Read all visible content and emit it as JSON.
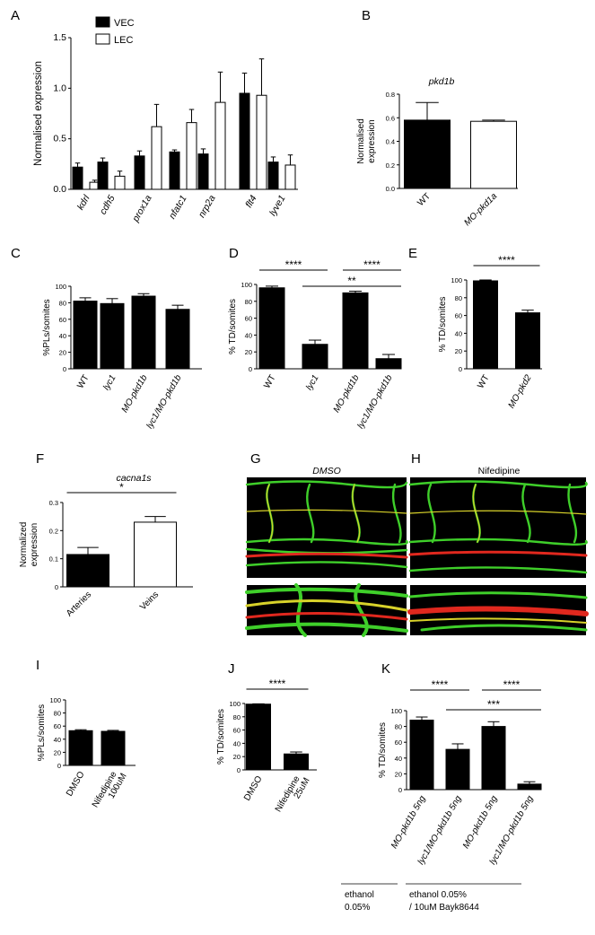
{
  "panels": {
    "A": "A",
    "B": "B",
    "C": "C",
    "D": "D",
    "E": "E",
    "F": "F",
    "G": "G",
    "H": "H",
    "I": "I",
    "J": "J",
    "K": "K"
  },
  "images": {
    "G_title": "DMSO",
    "H_title": "Nifedipine"
  },
  "conditions": {
    "left": [
      "ethanol",
      "0.05%"
    ],
    "right": [
      "ethanol 0.05%",
      "/ 10uM Bayk8644"
    ]
  },
  "colors": {
    "filled": "#000000",
    "open": "#ffffff",
    "green": "#3fcf2a",
    "red": "#e0281e",
    "yellow": "#d8d22a"
  },
  "chart_data": [
    {
      "id": "A",
      "type": "bar",
      "ylabel": "Normalised expression",
      "ylim": [
        0,
        1.5
      ],
      "yticks": [
        "0.0",
        "0.5",
        "1.0",
        "1.5"
      ],
      "legend": {
        "placement": "top-left",
        "entries": [
          "VEC",
          "LEC"
        ]
      },
      "categories": [
        "kdrl",
        "cdh5",
        "prox1a",
        "nfatc1",
        "nrp2a",
        "flt4",
        "lyve1"
      ],
      "series": [
        {
          "name": "VEC",
          "values": [
            0.22,
            0.27,
            0.33,
            0.37,
            0.35,
            0.95,
            0.27
          ],
          "errors": [
            0.04,
            0.04,
            0.05,
            0.02,
            0.05,
            0.2,
            0.05
          ]
        },
        {
          "name": "LEC",
          "values": [
            0.07,
            0.13,
            0.62,
            0.66,
            0.86,
            0.93,
            0.24
          ],
          "errors": [
            0.02,
            0.05,
            0.22,
            0.13,
            0.3,
            0.36,
            0.1
          ]
        }
      ]
    },
    {
      "id": "B",
      "type": "bar",
      "title": "pkd1b",
      "ylabel": [
        "Normalised",
        "expression"
      ],
      "ylim": [
        0,
        0.8
      ],
      "yticks": [
        "0.0",
        "0.2",
        "0.4",
        "0.6",
        "0.8"
      ],
      "categories": [
        "WT",
        "MO-pkd1a"
      ],
      "values": [
        0.58,
        0.57
      ],
      "errors": [
        0.15,
        0.01
      ],
      "fills": [
        "filled",
        "open"
      ]
    },
    {
      "id": "C",
      "type": "bar",
      "ylabel": "%PLs/somites",
      "ylim": [
        0,
        100
      ],
      "yticks": [
        "0",
        "20",
        "40",
        "60",
        "80",
        "100"
      ],
      "categories": [
        "WT",
        "lyc1",
        "MO-pkd1b",
        "lyc1/MO-pkd1b"
      ],
      "values": [
        82,
        79,
        88,
        72
      ],
      "errors": [
        4,
        6,
        3,
        5
      ]
    },
    {
      "id": "D",
      "type": "bar",
      "ylabel": "% TD/somites",
      "ylim": [
        0,
        100
      ],
      "yticks": [
        "0",
        "20",
        "40",
        "60",
        "80",
        "100"
      ],
      "categories": [
        "WT",
        "lyc1",
        "MO-pkd1b",
        "lyc1/MO-pkd1b"
      ],
      "values": [
        96,
        29,
        90,
        12
      ],
      "errors": [
        2,
        5,
        2,
        5
      ],
      "significance": [
        {
          "from": 0,
          "to": 1,
          "label": "****",
          "level": 0
        },
        {
          "from": 2,
          "to": 3,
          "label": "****",
          "level": 0
        },
        {
          "from": 1,
          "to": 3,
          "label": "**",
          "level": 1
        }
      ]
    },
    {
      "id": "E",
      "type": "bar",
      "ylabel": "% TD/somites",
      "ylim": [
        0,
        100
      ],
      "yticks": [
        "0",
        "20",
        "40",
        "60",
        "80",
        "100"
      ],
      "categories": [
        "WT",
        "MO-pkd2"
      ],
      "values": [
        99,
        63
      ],
      "errors": [
        1,
        3
      ],
      "significance": [
        {
          "from": 0,
          "to": 1,
          "label": "****",
          "level": 0
        }
      ]
    },
    {
      "id": "F",
      "type": "bar",
      "title": "cacna1s",
      "ylabel": [
        "Normalized",
        "expression"
      ],
      "ylim": [
        0,
        0.3
      ],
      "yticks": [
        "0",
        "0.1",
        "0.2",
        "0.3"
      ],
      "categories": [
        "Arteries",
        "Veins"
      ],
      "values": [
        0.115,
        0.23
      ],
      "errors": [
        0.025,
        0.02
      ],
      "fills": [
        "filled",
        "open"
      ],
      "significance": [
        {
          "from": 0,
          "to": 1,
          "label": "*",
          "level": 0
        }
      ]
    },
    {
      "id": "I",
      "type": "bar",
      "ylabel": "%PLs/somites",
      "ylim": [
        0,
        100
      ],
      "yticks": [
        "0",
        "20",
        "40",
        "60",
        "80",
        "100"
      ],
      "categories": [
        [
          "DMSO"
        ],
        [
          "Nifedipine",
          "100uM"
        ]
      ],
      "values": [
        53,
        52
      ],
      "errors": [
        1.5,
        1.5
      ]
    },
    {
      "id": "J",
      "type": "bar",
      "ylabel": "% TD/somites",
      "ylim": [
        0,
        100
      ],
      "yticks": [
        "0",
        "20",
        "40",
        "60",
        "80",
        "100"
      ],
      "categories": [
        [
          "DMSO"
        ],
        [
          "Nifedipine",
          "25uM"
        ]
      ],
      "values": [
        99,
        24
      ],
      "errors": [
        0.5,
        3
      ],
      "significance": [
        {
          "from": 0,
          "to": 1,
          "label": "****",
          "level": 0
        }
      ]
    },
    {
      "id": "K",
      "type": "bar",
      "ylabel": "% TD/somites",
      "ylim": [
        0,
        100
      ],
      "yticks": [
        "0",
        "20",
        "40",
        "60",
        "80",
        "100"
      ],
      "categories": [
        "MO-pkd1b 5ng",
        "lyc1/MO-pkd1b 5ng",
        "MO-pkd1b 5ng",
        "lyc1/MO-pkd1b 5ng"
      ],
      "values": [
        88,
        51,
        80,
        7
      ],
      "errors": [
        4,
        7,
        6,
        3
      ],
      "significance": [
        {
          "from": 0,
          "to": 1,
          "label": "****",
          "level": 0
        },
        {
          "from": 2,
          "to": 3,
          "label": "****",
          "level": 0
        },
        {
          "from": 1,
          "to": 3,
          "label": "***",
          "level": 1
        }
      ]
    }
  ]
}
